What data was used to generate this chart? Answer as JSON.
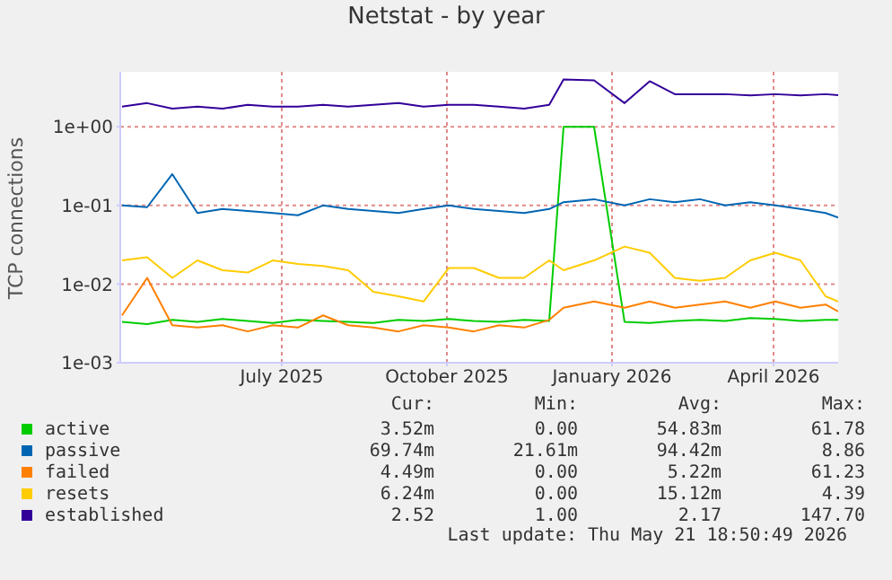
{
  "chart_data": {
    "type": "line",
    "title": "Netstat - by year",
    "ylabel": "TCP connections",
    "x": [
      "2025-04-03",
      "2025-04-17",
      "2025-05-01",
      "2025-05-15",
      "2025-05-29",
      "2025-06-12",
      "2025-06-26",
      "2025-07-10",
      "2025-07-24",
      "2025-08-07",
      "2025-08-21",
      "2025-09-04",
      "2025-09-18",
      "2025-10-02",
      "2025-10-16",
      "2025-10-30",
      "2025-11-13",
      "2025-11-27",
      "2025-12-05",
      "2025-12-22",
      "2026-01-08",
      "2026-01-22",
      "2026-02-05",
      "2026-02-19",
      "2026-03-05",
      "2026-03-19",
      "2026-04-02",
      "2026-04-16",
      "2026-04-30",
      "2026-05-07"
    ],
    "series": [
      {
        "name": "active",
        "color": "#00cc00",
        "values": [
          0.0033,
          0.0031,
          0.0035,
          0.0033,
          0.0036,
          0.0034,
          0.0032,
          0.0035,
          0.0034,
          0.0033,
          0.0032,
          0.0035,
          0.0034,
          0.0036,
          0.0034,
          0.0033,
          0.0035,
          0.0034,
          1.0,
          1.0,
          0.0033,
          0.0032,
          0.0034,
          0.0035,
          0.0034,
          0.0037,
          0.0036,
          0.0034,
          0.0035,
          0.0035
        ]
      },
      {
        "name": "passive",
        "color": "#0066b3",
        "values": [
          0.1,
          0.095,
          0.25,
          0.08,
          0.09,
          0.085,
          0.08,
          0.075,
          0.1,
          0.09,
          0.085,
          0.08,
          0.09,
          0.1,
          0.09,
          0.085,
          0.08,
          0.09,
          0.11,
          0.12,
          0.1,
          0.12,
          0.11,
          0.12,
          0.1,
          0.11,
          0.1,
          0.09,
          0.08,
          0.07
        ]
      },
      {
        "name": "failed",
        "color": "#ff8000",
        "values": [
          0.004,
          0.012,
          0.003,
          0.0028,
          0.003,
          0.0025,
          0.003,
          0.0028,
          0.004,
          0.003,
          0.0028,
          0.0025,
          0.003,
          0.0028,
          0.0025,
          0.003,
          0.0028,
          0.0035,
          0.005,
          0.006,
          0.005,
          0.006,
          0.005,
          0.0055,
          0.006,
          0.005,
          0.006,
          0.005,
          0.0055,
          0.0045
        ]
      },
      {
        "name": "resets",
        "color": "#ffcc00",
        "values": [
          0.02,
          0.022,
          0.012,
          0.02,
          0.015,
          0.014,
          0.02,
          0.018,
          0.017,
          0.015,
          0.008,
          0.007,
          0.006,
          0.016,
          0.016,
          0.012,
          0.012,
          0.02,
          0.015,
          0.02,
          0.03,
          0.025,
          0.012,
          0.011,
          0.012,
          0.02,
          0.025,
          0.02,
          0.007,
          0.006
        ]
      },
      {
        "name": "established",
        "color": "#330099",
        "values": [
          1.8,
          2.0,
          1.7,
          1.8,
          1.7,
          1.9,
          1.8,
          1.8,
          1.9,
          1.8,
          1.9,
          2.0,
          1.8,
          1.9,
          1.9,
          1.8,
          1.7,
          1.9,
          4.0,
          3.9,
          2.0,
          3.8,
          2.6,
          2.6,
          2.6,
          2.5,
          2.6,
          2.5,
          2.6,
          2.52
        ]
      }
    ],
    "xlim": [
      "2025-04-02",
      "2026-05-07"
    ],
    "xticks": [
      {
        "value": "2025-07-01",
        "label": "July 2025"
      },
      {
        "value": "2025-10-01",
        "label": "October 2025"
      },
      {
        "value": "2026-01-01",
        "label": "January 2026"
      },
      {
        "value": "2026-04-01",
        "label": "April 2026"
      }
    ],
    "ylim": [
      0.001,
      5
    ],
    "yticks": [
      {
        "value": 0.001,
        "label": "1e-03"
      },
      {
        "value": 0.01,
        "label": "1e-02"
      },
      {
        "value": 0.1,
        "label": "1e-01"
      },
      {
        "value": 1,
        "label": "1e+00"
      }
    ],
    "log": "y",
    "grid": true,
    "legend": "bottom",
    "marker": "none",
    "line_style": "solid",
    "annotations": [
      "Cur:",
      "Min:",
      "Avg:",
      "Max:",
      "3.52m",
      "0.00",
      "54.83m",
      "61.78",
      "69.74m",
      "21.61m",
      "94.42m",
      "8.86",
      "4.49m",
      "0.00",
      "5.22m",
      "61.23",
      "6.24m",
      "0.00",
      "15.12m",
      "4.39",
      "2.52",
      "1.00",
      "2.17",
      "147.70",
      "Last update: Thu May 21 18:50:49 2026"
    ]
  }
}
